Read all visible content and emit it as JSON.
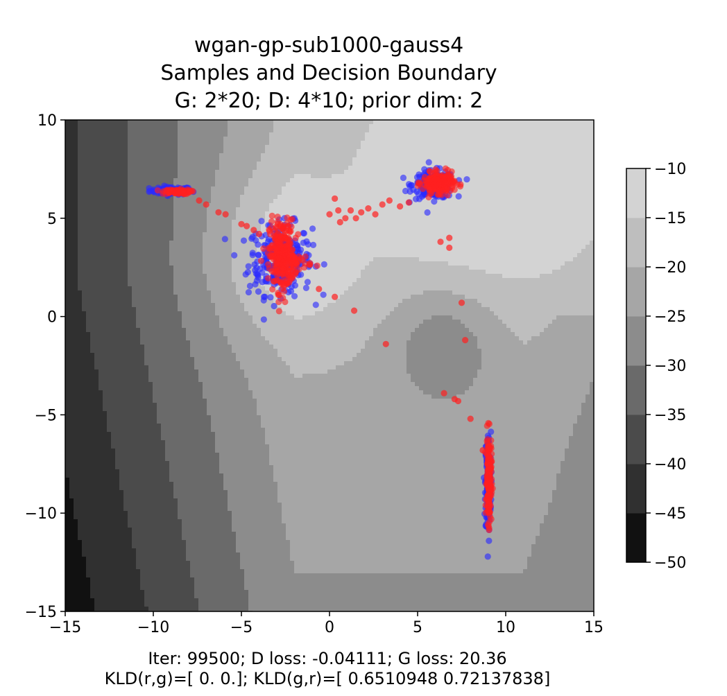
{
  "chart_data": {
    "type": "scatter",
    "title": [
      "wgan-gp-sub1000-gauss4",
      "Samples and Decision Boundary",
      "G: 2*20; D: 4*10; prior dim: 2"
    ],
    "xlabel": "Iter: 99500; D loss: -0.04111; G loss: 20.36",
    "xlabel2": "KLD(r,g)=[ 0.  0.]; KLD(g,r)=[ 0.6510948   0.72137838]",
    "ylabel": "",
    "xlim": [
      -15,
      15
    ],
    "ylim": [
      -15,
      10
    ],
    "xticks": [
      -15,
      -10,
      -5,
      0,
      5,
      10,
      15
    ],
    "yticks": [
      -15,
      -10,
      -5,
      0,
      5,
      10
    ],
    "colorbar": {
      "levels": [
        -50,
        -45,
        -40,
        -35,
        -30,
        -25,
        -20,
        -15,
        -10
      ],
      "ticks": [
        -10,
        -15,
        -20,
        -25,
        -30,
        -35,
        -40,
        -45,
        -50
      ],
      "colors": [
        "#111111",
        "#303030",
        "#4b4b4b",
        "#6a6a6a",
        "#8c8c8c",
        "#a6a6a6",
        "#bebebe",
        "#d3d3d3",
        "#f0f0f0"
      ]
    },
    "series": [
      {
        "color": "#2a2aff",
        "clusters": [
          {
            "cx": -9.0,
            "cy": 6.4,
            "sx": 0.6,
            "sy": 0.1,
            "n": 90
          },
          {
            "cx": -2.8,
            "cy": 2.9,
            "sx": 0.9,
            "sy": 0.9,
            "n": 260
          },
          {
            "cx": 5.9,
            "cy": 6.7,
            "sx": 0.6,
            "sy": 0.35,
            "n": 200
          },
          {
            "cx": 9.0,
            "cy": -8.5,
            "sx": 0.08,
            "sy": 1.3,
            "n": 160
          }
        ]
      },
      {
        "color": "#ff2020",
        "clusters": [
          {
            "cx": -8.7,
            "cy": 6.35,
            "sx": 0.4,
            "sy": 0.06,
            "n": 80
          },
          {
            "cx": -2.7,
            "cy": 3.1,
            "sx": 0.35,
            "sy": 0.9,
            "n": 260
          },
          {
            "cx": -2.0,
            "cy": 2.8,
            "sx": 0.5,
            "sy": 0.2,
            "n": 50
          },
          {
            "cx": 6.2,
            "cy": 6.8,
            "sx": 0.45,
            "sy": 0.25,
            "n": 200
          },
          {
            "cx": 9.05,
            "cy": -8.3,
            "sx": 0.07,
            "sy": 1.1,
            "n": 180
          }
        ],
        "points": [
          [
            -7.4,
            5.9
          ],
          [
            -7.0,
            5.7
          ],
          [
            -6.3,
            5.3
          ],
          [
            -5.9,
            5.2
          ],
          [
            -5.0,
            4.7
          ],
          [
            -4.7,
            4.6
          ],
          [
            -4.3,
            4.4
          ],
          [
            -4.0,
            4.2
          ],
          [
            0.0,
            5.2
          ],
          [
            0.3,
            6.0
          ],
          [
            0.5,
            5.4
          ],
          [
            0.6,
            4.8
          ],
          [
            0.9,
            5.0
          ],
          [
            1.2,
            5.4
          ],
          [
            1.5,
            5.0
          ],
          [
            1.8,
            5.3
          ],
          [
            2.2,
            5.5
          ],
          [
            2.6,
            5.2
          ],
          [
            3.0,
            5.7
          ],
          [
            3.4,
            5.9
          ],
          [
            4.0,
            5.6
          ],
          [
            4.5,
            5.8
          ],
          [
            6.3,
            3.8
          ],
          [
            6.8,
            4.0
          ],
          [
            6.8,
            3.5
          ],
          [
            0.3,
            1.0
          ],
          [
            1.4,
            0.3
          ],
          [
            3.2,
            -1.4
          ],
          [
            7.5,
            0.7
          ],
          [
            7.7,
            -1.2
          ],
          [
            6.5,
            -3.9
          ],
          [
            7.1,
            -4.2
          ],
          [
            7.3,
            -4.3
          ],
          [
            8.0,
            -5.2
          ],
          [
            8.7,
            -6.8
          ],
          [
            -0.6,
            1.4
          ]
        ]
      }
    ]
  }
}
